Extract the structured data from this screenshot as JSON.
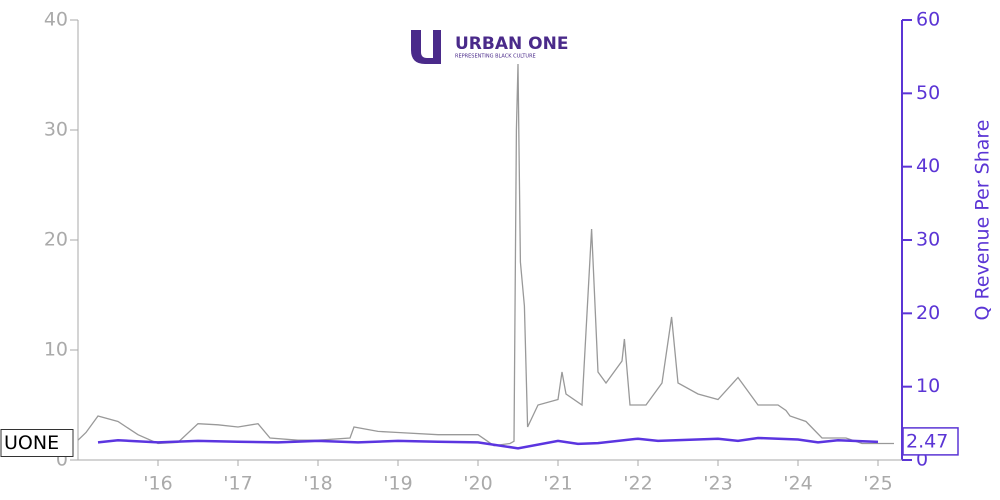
{
  "chart_data": {
    "type": "line",
    "logo": {
      "title": "URBAN ONE",
      "subtitle": "REPRESENTING BLACK CULTURE"
    },
    "xlim": [
      2015,
      2025.3
    ],
    "xticks": [
      {
        "value": 2016,
        "label": "'16"
      },
      {
        "value": 2017,
        "label": "'17"
      },
      {
        "value": 2018,
        "label": "'18"
      },
      {
        "value": 2019,
        "label": "'19"
      },
      {
        "value": 2020,
        "label": "'20"
      },
      {
        "value": 2021,
        "label": "'21"
      },
      {
        "value": 2022,
        "label": "'22"
      },
      {
        "value": 2023,
        "label": "'23"
      },
      {
        "value": 2024,
        "label": "'24"
      },
      {
        "value": 2025,
        "label": "'25"
      }
    ],
    "ylim": [
      0,
      40
    ],
    "yticks": [
      0,
      10,
      20,
      30,
      40
    ],
    "y2lim": [
      0,
      60
    ],
    "y2ticks": [
      0,
      10,
      20,
      30,
      40,
      50,
      60
    ],
    "series": [
      {
        "name": "UONE",
        "color": "#999999",
        "x": [
          2015.0,
          2015.1,
          2015.25,
          2015.5,
          2015.75,
          2016.0,
          2016.25,
          2016.5,
          2016.75,
          2017.0,
          2017.25,
          2017.4,
          2017.75,
          2018.0,
          2018.4,
          2018.45,
          2018.75,
          2019.0,
          2019.5,
          2020.0,
          2020.2,
          2020.4,
          2020.45,
          2020.48,
          2020.5,
          2020.53,
          2020.58,
          2020.62,
          2020.75,
          2021.0,
          2021.05,
          2021.1,
          2021.3,
          2021.42,
          2021.5,
          2021.6,
          2021.8,
          2021.83,
          2021.9,
          2022.1,
          2022.3,
          2022.42,
          2022.5,
          2022.75,
          2023.0,
          2023.25,
          2023.5,
          2023.75,
          2023.85,
          2023.9,
          2024.1,
          2024.3,
          2024.6,
          2024.8,
          2025.2
        ],
        "values": [
          1.8,
          2.5,
          4.0,
          3.5,
          2.3,
          1.5,
          1.6,
          3.3,
          3.2,
          3.0,
          3.3,
          2.0,
          1.8,
          1.8,
          2.0,
          3.0,
          2.6,
          2.5,
          2.3,
          2.3,
          1.3,
          1.5,
          1.7,
          30,
          36,
          18,
          14,
          3,
          5,
          5.5,
          8,
          6,
          5,
          21,
          8,
          7,
          9,
          11,
          5,
          5,
          7,
          13,
          7,
          6,
          5.5,
          7.5,
          5,
          5,
          4.5,
          4,
          3.5,
          2,
          2,
          1.5,
          1.5
        ]
      },
      {
        "name": "Q Revenue Per Share",
        "color": "#5b35e0",
        "axis": "y2",
        "x": [
          2015.25,
          2015.5,
          2016.0,
          2016.5,
          2017.0,
          2017.5,
          2018.0,
          2018.5,
          2019.0,
          2019.5,
          2020.0,
          2020.5,
          2021.0,
          2021.25,
          2021.5,
          2022.0,
          2022.25,
          2023.0,
          2023.25,
          2023.5,
          2024.0,
          2024.25,
          2024.5,
          2025.0
        ],
        "values": [
          2.4,
          2.7,
          2.4,
          2.6,
          2.5,
          2.4,
          2.6,
          2.4,
          2.6,
          2.5,
          2.4,
          1.6,
          2.6,
          2.2,
          2.3,
          2.9,
          2.6,
          2.9,
          2.6,
          3.0,
          2.8,
          2.4,
          2.7,
          2.47
        ]
      }
    ]
  }
}
